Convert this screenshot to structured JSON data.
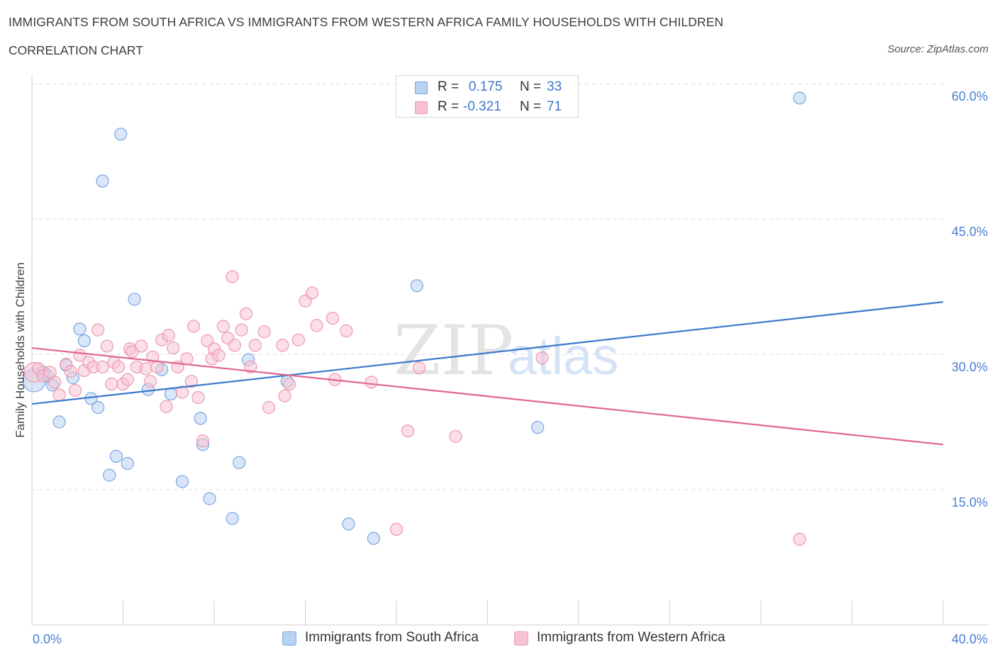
{
  "header": {
    "title": "IMMIGRANTS FROM SOUTH AFRICA VS IMMIGRANTS FROM WESTERN AFRICA FAMILY HOUSEHOLDS WITH CHILDREN",
    "subtitle": "CORRELATION CHART",
    "source": "Source: ZipAtlas.com"
  },
  "legend": {
    "rows": [
      {
        "r_label": "R =",
        "r_value": "0.175",
        "n_label": "N =",
        "n_value": "33"
      },
      {
        "r_label": "R =",
        "r_value": "-0.321",
        "n_label": "N =",
        "n_value": "71"
      }
    ],
    "bottom": [
      "Immigrants from South Africa",
      "Immigrants from Western Africa"
    ]
  },
  "watermark": {
    "zip": "ZIP",
    "atlas": "atlas"
  },
  "colors": {
    "blue_fill": "#b9d2f3",
    "blue_stroke": "#7aa5e0",
    "blue_line": "#3b78cc",
    "pink_fill": "#f7c3d2",
    "pink_stroke": "#eb9ab3",
    "pink_line": "#e06591",
    "grid": "#d9d9d9",
    "axis_text": "#4a7fd0"
  },
  "chart_data": {
    "type": "scatter",
    "title": "IMMIGRANTS FROM SOUTH AFRICA VS IMMIGRANTS FROM WESTERN AFRICA FAMILY HOUSEHOLDS WITH CHILDREN",
    "xlabel": "",
    "ylabel": "Family Households with Children",
    "xlim": [
      0,
      40
    ],
    "ylim": [
      0,
      60
    ],
    "x_tick_labels": [
      "0.0%",
      "40.0%"
    ],
    "y_tick_labels": [
      "15.0%",
      "30.0%",
      "45.0%",
      "60.0%"
    ],
    "y_ticks": [
      15,
      30,
      45,
      60
    ],
    "grid": true,
    "legend_position": "top-center",
    "series": [
      {
        "name": "Immigrants from South Africa",
        "color": "#7aa5e0",
        "points": [
          [
            0.1,
            27.1
          ],
          [
            0.5,
            28.0
          ],
          [
            0.7,
            27.6
          ],
          [
            0.9,
            26.6
          ],
          [
            1.2,
            22.5
          ],
          [
            1.5,
            28.8
          ],
          [
            1.8,
            27.4
          ],
          [
            2.1,
            32.8
          ],
          [
            2.3,
            31.5
          ],
          [
            2.6,
            25.1
          ],
          [
            2.9,
            24.1
          ],
          [
            3.1,
            49.2
          ],
          [
            3.4,
            16.6
          ],
          [
            3.7,
            18.7
          ],
          [
            3.9,
            54.4
          ],
          [
            4.2,
            17.9
          ],
          [
            4.5,
            36.1
          ],
          [
            5.1,
            26.1
          ],
          [
            5.7,
            28.3
          ],
          [
            6.1,
            25.6
          ],
          [
            6.6,
            15.9
          ],
          [
            7.4,
            22.9
          ],
          [
            7.5,
            20.0
          ],
          [
            7.8,
            14.0
          ],
          [
            8.8,
            11.8
          ],
          [
            9.1,
            18.0
          ],
          [
            9.5,
            29.4
          ],
          [
            11.2,
            27.0
          ],
          [
            13.9,
            11.2
          ],
          [
            15.0,
            9.6
          ],
          [
            16.9,
            37.6
          ],
          [
            22.2,
            21.9
          ],
          [
            33.7,
            58.4
          ]
        ]
      },
      {
        "name": "Immigrants from Western Africa",
        "color": "#eb9ab3",
        "points": [
          [
            0.1,
            28.0
          ],
          [
            0.3,
            28.4
          ],
          [
            0.5,
            27.6
          ],
          [
            0.8,
            28.0
          ],
          [
            1.0,
            26.9
          ],
          [
            1.2,
            25.5
          ],
          [
            1.5,
            28.9
          ],
          [
            1.7,
            28.1
          ],
          [
            1.9,
            26.0
          ],
          [
            2.1,
            29.9
          ],
          [
            2.3,
            28.2
          ],
          [
            2.5,
            29.1
          ],
          [
            2.7,
            28.6
          ],
          [
            2.9,
            32.7
          ],
          [
            3.1,
            28.6
          ],
          [
            3.3,
            30.9
          ],
          [
            3.5,
            26.7
          ],
          [
            3.6,
            29.1
          ],
          [
            3.8,
            28.6
          ],
          [
            4.0,
            26.7
          ],
          [
            4.2,
            27.2
          ],
          [
            4.3,
            30.6
          ],
          [
            4.4,
            30.3
          ],
          [
            4.6,
            28.6
          ],
          [
            4.8,
            30.9
          ],
          [
            5.0,
            28.4
          ],
          [
            5.2,
            27.0
          ],
          [
            5.3,
            29.7
          ],
          [
            5.5,
            28.6
          ],
          [
            5.7,
            31.6
          ],
          [
            5.9,
            24.2
          ],
          [
            6.0,
            32.1
          ],
          [
            6.2,
            30.7
          ],
          [
            6.4,
            28.6
          ],
          [
            6.6,
            25.8
          ],
          [
            6.8,
            29.5
          ],
          [
            7.0,
            27.0
          ],
          [
            7.1,
            33.1
          ],
          [
            7.3,
            25.2
          ],
          [
            7.5,
            20.4
          ],
          [
            7.7,
            31.5
          ],
          [
            7.9,
            29.5
          ],
          [
            8.0,
            30.6
          ],
          [
            8.2,
            29.9
          ],
          [
            8.4,
            33.1
          ],
          [
            8.6,
            31.8
          ],
          [
            8.8,
            38.6
          ],
          [
            8.9,
            31.0
          ],
          [
            9.2,
            32.7
          ],
          [
            9.4,
            34.5
          ],
          [
            9.6,
            28.6
          ],
          [
            9.8,
            31.0
          ],
          [
            10.2,
            32.5
          ],
          [
            10.4,
            24.1
          ],
          [
            11.0,
            31.0
          ],
          [
            11.1,
            25.4
          ],
          [
            11.3,
            26.7
          ],
          [
            11.7,
            31.6
          ],
          [
            12.0,
            35.9
          ],
          [
            12.3,
            36.8
          ],
          [
            12.5,
            33.2
          ],
          [
            13.2,
            34.0
          ],
          [
            13.3,
            27.2
          ],
          [
            13.8,
            32.6
          ],
          [
            14.9,
            26.9
          ],
          [
            16.0,
            10.6
          ],
          [
            16.5,
            21.5
          ],
          [
            17.0,
            28.5
          ],
          [
            18.6,
            20.9
          ],
          [
            22.4,
            29.6
          ],
          [
            33.7,
            9.5
          ]
        ]
      }
    ],
    "trendlines": [
      {
        "series": "Immigrants from South Africa",
        "x": [
          0,
          40
        ],
        "y": [
          24.5,
          35.8
        ]
      },
      {
        "series": "Immigrants from Western Africa",
        "x": [
          0,
          40
        ],
        "y": [
          30.7,
          20.0
        ]
      }
    ]
  }
}
